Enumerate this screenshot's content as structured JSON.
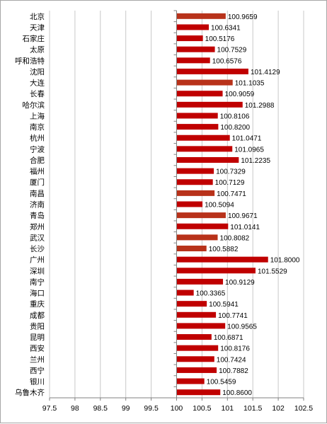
{
  "chart_data": {
    "type": "bar",
    "orientation": "horizontal",
    "title": "",
    "xlabel": "",
    "ylabel": "",
    "xlim": [
      97.5,
      102.5
    ],
    "x_ticks": [
      "97.5",
      "98",
      "98.5",
      "99",
      "99.5",
      "100",
      "100.5",
      "101",
      "101.5",
      "102",
      "102.5"
    ],
    "baseline": 100,
    "grid": "vertical",
    "legend": "none",
    "colors": {
      "bar": "#c00000",
      "bar_alt": "#b8321a",
      "grid": "#c8c8c8",
      "axis": "#808080"
    },
    "categories": [
      "北京",
      "天津",
      "石家庄",
      "太原",
      "呼和浩特",
      "沈阳",
      "大连",
      "长春",
      "哈尔滨",
      "上海",
      "南京",
      "杭州",
      "宁波",
      "合肥",
      "福州",
      "厦门",
      "南昌",
      "济南",
      "青岛",
      "郑州",
      "武汉",
      "长沙",
      "广州",
      "深圳",
      "南宁",
      "海口",
      "重庆",
      "成都",
      "贵阳",
      "昆明",
      "西安",
      "兰州",
      "西宁",
      "银川",
      "乌鲁木齐"
    ],
    "values": [
      100.9659,
      100.6341,
      100.5176,
      100.7529,
      100.6576,
      101.4129,
      101.1035,
      100.9059,
      101.2988,
      100.8106,
      100.82,
      101.0471,
      101.0965,
      101.2235,
      100.7329,
      100.7129,
      100.7471,
      100.5094,
      100.9671,
      101.0141,
      100.8082,
      100.5882,
      101.8,
      101.5529,
      100.9129,
      100.3365,
      100.5941,
      100.7741,
      100.9565,
      100.6871,
      100.8176,
      100.7424,
      100.7882,
      100.5459,
      100.86
    ],
    "value_labels": [
      "100.9659",
      "100.6341",
      "100.5176",
      "100.7529",
      "100.6576",
      "101.4129",
      "101.1035",
      "100.9059",
      "101.2988",
      "100.8106",
      "100.8200",
      "101.0471",
      "101.0965",
      "101.2235",
      "100.7329",
      "100.7129",
      "100.7471",
      "100.5094",
      "100.9671",
      "101.0141",
      "100.8082",
      "100.5882",
      "101.8000",
      "101.5529",
      "100.9129",
      "100.3365",
      "100.5941",
      "100.7741",
      "100.9565",
      "100.6871",
      "100.8176",
      "100.7424",
      "100.7882",
      "100.5459",
      "100.8600"
    ],
    "alt_color_categories": [
      "北京",
      "大连",
      "南昌",
      "青岛",
      "武汉",
      "长沙"
    ]
  }
}
